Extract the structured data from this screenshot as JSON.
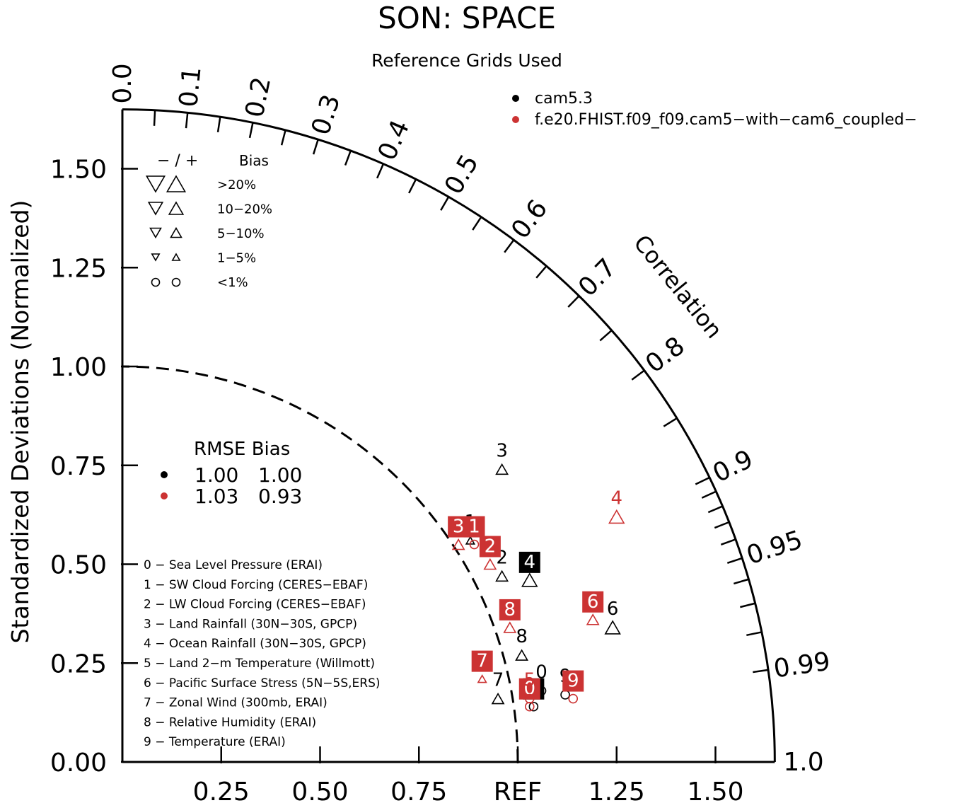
{
  "chart_data": {
    "type": "taylor",
    "title": "SON: SPACE",
    "subtitle": "Reference Grids Used",
    "ylabel": "Standardized Deviations (Normalized)",
    "correlation_label": "Correlation",
    "ref_label": "REF",
    "std_range": [
      0,
      1.65
    ],
    "y_ticks": [
      {
        "value": 0.0,
        "label": "0.00"
      },
      {
        "value": 0.25,
        "label": "0.25"
      },
      {
        "value": 0.5,
        "label": "0.50"
      },
      {
        "value": 0.75,
        "label": "0.75"
      },
      {
        "value": 1.0,
        "label": "1.00"
      },
      {
        "value": 1.25,
        "label": "1.25"
      },
      {
        "value": 1.5,
        "label": "1.50"
      }
    ],
    "x_ticks": [
      {
        "value": 0.25,
        "label": "0.25"
      },
      {
        "value": 0.5,
        "label": "0.50"
      },
      {
        "value": 0.75,
        "label": "0.75"
      },
      {
        "value": 1.0,
        "label": "REF"
      },
      {
        "value": 1.25,
        "label": "1.25"
      },
      {
        "value": 1.5,
        "label": "1.50"
      }
    ],
    "corr_labels": [
      {
        "value": 0.0,
        "label": "0.0"
      },
      {
        "value": 0.1,
        "label": "0.1"
      },
      {
        "value": 0.2,
        "label": "0.2"
      },
      {
        "value": 0.3,
        "label": "0.3"
      },
      {
        "value": 0.4,
        "label": "0.4"
      },
      {
        "value": 0.5,
        "label": "0.5"
      },
      {
        "value": 0.6,
        "label": "0.6"
      },
      {
        "value": 0.7,
        "label": "0.7"
      },
      {
        "value": 0.8,
        "label": "0.8"
      },
      {
        "value": 0.9,
        "label": "0.9"
      },
      {
        "value": 0.95,
        "label": "0.95"
      },
      {
        "value": 0.99,
        "label": "0.99"
      },
      {
        "value": 1.0,
        "label": "1.0"
      }
    ],
    "corr_ticks": [
      0.05,
      0.1,
      0.15,
      0.2,
      0.25,
      0.3,
      0.35,
      0.4,
      0.45,
      0.5,
      0.55,
      0.6,
      0.65,
      0.7,
      0.75,
      0.8,
      0.85,
      0.9,
      0.91,
      0.92,
      0.93,
      0.94,
      0.95,
      0.96,
      0.97,
      0.98,
      0.99
    ],
    "series": [
      {
        "name": "cam5.3",
        "color": "#000000",
        "points": [
          {
            "id": "0",
            "x": 1.06,
            "y": 0.18,
            "marker": "circle",
            "size": "small",
            "label_style": "plain"
          },
          {
            "id": "1",
            "x": 0.88,
            "y": 0.56,
            "marker": "triangle-up",
            "size": "small",
            "label_style": "plain"
          },
          {
            "id": "2",
            "x": 0.96,
            "y": 0.47,
            "marker": "triangle-up",
            "size": "medium",
            "label_style": "plain"
          },
          {
            "id": "3",
            "x": 0.96,
            "y": 0.74,
            "marker": "triangle-up",
            "size": "medium",
            "label_style": "plain"
          },
          {
            "id": "4",
            "x": 1.03,
            "y": 0.46,
            "marker": "triangle-up",
            "size": "large",
            "label_style": "boxed"
          },
          {
            "id": "5",
            "x": 1.04,
            "y": 0.14,
            "marker": "circle",
            "size": "small",
            "label_style": "boxed"
          },
          {
            "id": "6",
            "x": 1.24,
            "y": 0.34,
            "marker": "triangle-up",
            "size": "large",
            "label_style": "plain"
          },
          {
            "id": "7",
            "x": 0.95,
            "y": 0.16,
            "marker": "triangle-up",
            "size": "medium",
            "label_style": "plain"
          },
          {
            "id": "8",
            "x": 1.01,
            "y": 0.27,
            "marker": "triangle-up",
            "size": "medium",
            "label_style": "plain"
          },
          {
            "id": "9",
            "x": 1.12,
            "y": 0.17,
            "marker": "circle",
            "size": "small",
            "label_style": "plain"
          }
        ]
      },
      {
        "name": "f.e20.FHIST.f09_f09.cam5−with−cam6_coupled−",
        "color": "#cc3333",
        "points": [
          {
            "id": "0",
            "x": 1.03,
            "y": 0.14,
            "marker": "circle",
            "size": "small",
            "label_style": "boxed"
          },
          {
            "id": "1",
            "x": 0.89,
            "y": 0.55,
            "marker": "circle",
            "size": "small",
            "label_style": "boxed"
          },
          {
            "id": "2",
            "x": 0.93,
            "y": 0.5,
            "marker": "triangle-up",
            "size": "medium",
            "label_style": "boxed"
          },
          {
            "id": "3",
            "x": 0.85,
            "y": 0.55,
            "marker": "triangle-up",
            "size": "medium",
            "label_style": "boxed"
          },
          {
            "id": "4",
            "x": 1.25,
            "y": 0.62,
            "marker": "triangle-up",
            "size": "large",
            "label_style": "plain"
          },
          {
            "id": "5",
            "x": 1.03,
            "y": 0.16,
            "marker": "circle",
            "size": "small",
            "label_style": "plain"
          },
          {
            "id": "6",
            "x": 1.19,
            "y": 0.36,
            "marker": "triangle-up",
            "size": "medium",
            "label_style": "boxed"
          },
          {
            "id": "7",
            "x": 0.91,
            "y": 0.21,
            "marker": "triangle-up",
            "size": "small",
            "label_style": "boxed"
          },
          {
            "id": "8",
            "x": 0.98,
            "y": 0.34,
            "marker": "triangle-up",
            "size": "medium",
            "label_style": "boxed"
          },
          {
            "id": "9",
            "x": 1.14,
            "y": 0.16,
            "marker": "circle",
            "size": "small",
            "label_style": "boxed"
          }
        ]
      }
    ],
    "legend": {
      "entries": [
        {
          "name": "cam5.3",
          "color": "#000000"
        },
        {
          "name": "f.e20.FHIST.f09_f09.cam5−with−cam6_coupled−",
          "color": "#cc3333"
        }
      ],
      "position": "top-right"
    },
    "bias_legend": {
      "header_sign": "− / +",
      "header_bias": "Bias",
      "rows": [
        {
          "marker": "triangle",
          "size": "large",
          "label": ">20%"
        },
        {
          "marker": "triangle",
          "size": "medium",
          "label": "10−20%"
        },
        {
          "marker": "triangle",
          "size": "small",
          "label": "5−10%"
        },
        {
          "marker": "triangle",
          "size": "tiny",
          "label": "1−5%"
        },
        {
          "marker": "circle",
          "size": "circle",
          "label": "<1%"
        }
      ]
    },
    "rmse_table": {
      "header": "RMSE Bias",
      "rows": [
        {
          "color": "#000000",
          "rmse": "1.00",
          "bias": "1.00"
        },
        {
          "color": "#cc3333",
          "rmse": "1.03",
          "bias": "0.93"
        }
      ]
    },
    "variable_list": [
      "0 − Sea Level Pressure (ERAI)",
      "1 − SW Cloud Forcing (CERES−EBAF)",
      "2 − LW Cloud Forcing (CERES−EBAF)",
      "3 − Land Rainfall (30N−30S, GPCP)",
      "4 − Ocean Rainfall (30N−30S, GPCP)",
      "5 − Land 2−m Temperature (Willmott)",
      "6 − Pacific Surface Stress (5N−5S,ERS)",
      "7 − Zonal Wind (300mb, ERAI)",
      "8 − Relative Humidity (ERAI)",
      "9 − Temperature (ERAI)"
    ]
  }
}
